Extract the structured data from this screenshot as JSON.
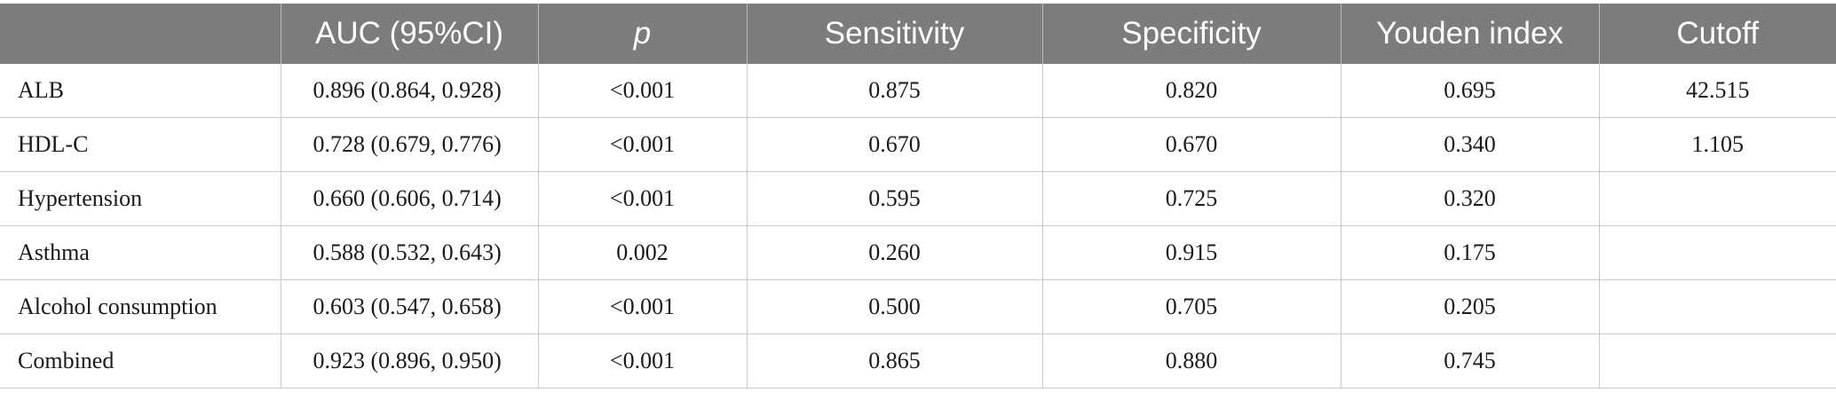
{
  "table": {
    "headers": [
      "",
      "AUC (95%CI)",
      "p",
      "Sensitivity",
      "Specificity",
      "Youden index",
      "Cutoff"
    ],
    "rows": [
      {
        "variable": "ALB",
        "auc": "0.896 (0.864, 0.928)",
        "p": "<0.001",
        "sensitivity": "0.875",
        "specificity": "0.820",
        "youden": "0.695",
        "cutoff": "42.515"
      },
      {
        "variable": "HDL-C",
        "auc": "0.728 (0.679, 0.776)",
        "p": "<0.001",
        "sensitivity": "0.670",
        "specificity": "0.670",
        "youden": "0.340",
        "cutoff": "1.105"
      },
      {
        "variable": "Hypertension",
        "auc": "0.660 (0.606, 0.714)",
        "p": "<0.001",
        "sensitivity": "0.595",
        "specificity": "0.725",
        "youden": "0.320",
        "cutoff": ""
      },
      {
        "variable": "Asthma",
        "auc": "0.588 (0.532, 0.643)",
        "p": "0.002",
        "sensitivity": "0.260",
        "specificity": "0.915",
        "youden": "0.175",
        "cutoff": ""
      },
      {
        "variable": "Alcohol consumption",
        "auc": "0.603 (0.547, 0.658)",
        "p": "<0.001",
        "sensitivity": "0.500",
        "specificity": "0.705",
        "youden": "0.205",
        "cutoff": ""
      },
      {
        "variable": "Combined",
        "auc": "0.923 (0.896, 0.950)",
        "p": "<0.001",
        "sensitivity": "0.865",
        "specificity": "0.880",
        "youden": "0.745",
        "cutoff": ""
      }
    ]
  },
  "colors": {
    "header_background": "#7b7c7b",
    "header_text": "#ffffff",
    "body_text": "#1a1a1a",
    "grid_line": "#c9c9c9"
  }
}
